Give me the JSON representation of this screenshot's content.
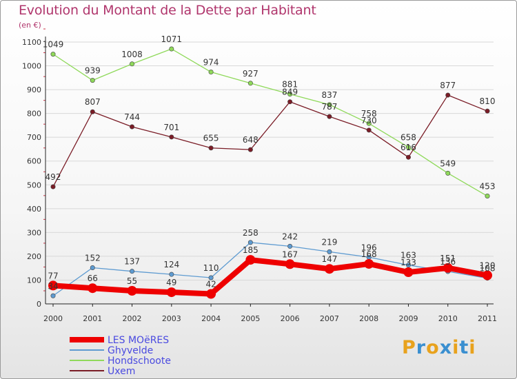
{
  "header": {
    "title": "Evolution du Montant de la Dette par Habitant",
    "unit": "(en €)"
  },
  "logo": {
    "text": "Proxiti",
    "letter_colors": [
      "#e8a21d",
      "#3a8fd0",
      "#e8a21d",
      "#3a8fd0",
      "#e8a21d",
      "#3a8fd0",
      "#e8a21d"
    ]
  },
  "colors": {
    "title": "#b0356c",
    "axis": "#222222",
    "grid": "#d8d8d8",
    "label": "#333333",
    "legend_text": "#4a4ae0"
  },
  "chart_data": {
    "type": "line",
    "title": "Evolution du Montant de la Dette par Habitant",
    "ylabel": "(en €)",
    "xlabel": "",
    "x": [
      "2000",
      "2001",
      "2002",
      "2003",
      "2004",
      "2005",
      "2006",
      "2007",
      "2008",
      "2009",
      "2010",
      "2011"
    ],
    "ylim": [
      0,
      1100
    ],
    "yticks": [
      0,
      100,
      200,
      300,
      400,
      500,
      600,
      700,
      800,
      900,
      1000,
      1100
    ],
    "grid": "horizontal",
    "legend_position": "bottom-left",
    "series": [
      {
        "name": "LES MOëRES",
        "color": "#ee0000",
        "emphasis": true,
        "values": [
          77,
          66,
          55,
          49,
          42,
          185,
          167,
          147,
          168,
          133,
          151,
          120
        ],
        "labels": [
          "77",
          "66",
          "55",
          "49",
          "42",
          "185",
          "167",
          "147",
          "168",
          "133",
          "151",
          "120"
        ]
      },
      {
        "name": "Ghyvelde",
        "color": "#5e9bd1",
        "emphasis": false,
        "values": [
          34,
          152,
          137,
          124,
          110,
          258,
          242,
          219,
          196,
          163,
          136,
          108
        ],
        "labels": [
          "34",
          "152",
          "137",
          "124",
          "110",
          "258",
          "242",
          "219",
          "196",
          "163",
          "136",
          "108"
        ]
      },
      {
        "name": "Hondschoote",
        "color": "#8fd95a",
        "emphasis": false,
        "values": [
          1049,
          939,
          1008,
          1071,
          974,
          927,
          881,
          837,
          758,
          658,
          549,
          453
        ],
        "labels": [
          "1049",
          "939",
          "1008",
          "1071",
          "974",
          "927",
          "881",
          "837",
          "758",
          "658",
          "549",
          "453"
        ]
      },
      {
        "name": "Uxem",
        "color": "#7a1c26",
        "emphasis": false,
        "values": [
          492,
          807,
          744,
          701,
          655,
          648,
          849,
          787,
          730,
          616,
          877,
          810
        ],
        "labels": [
          "492",
          "807",
          "744",
          "701",
          "655",
          "648",
          "849",
          "787",
          "730",
          "616",
          "877",
          "810"
        ]
      }
    ]
  }
}
